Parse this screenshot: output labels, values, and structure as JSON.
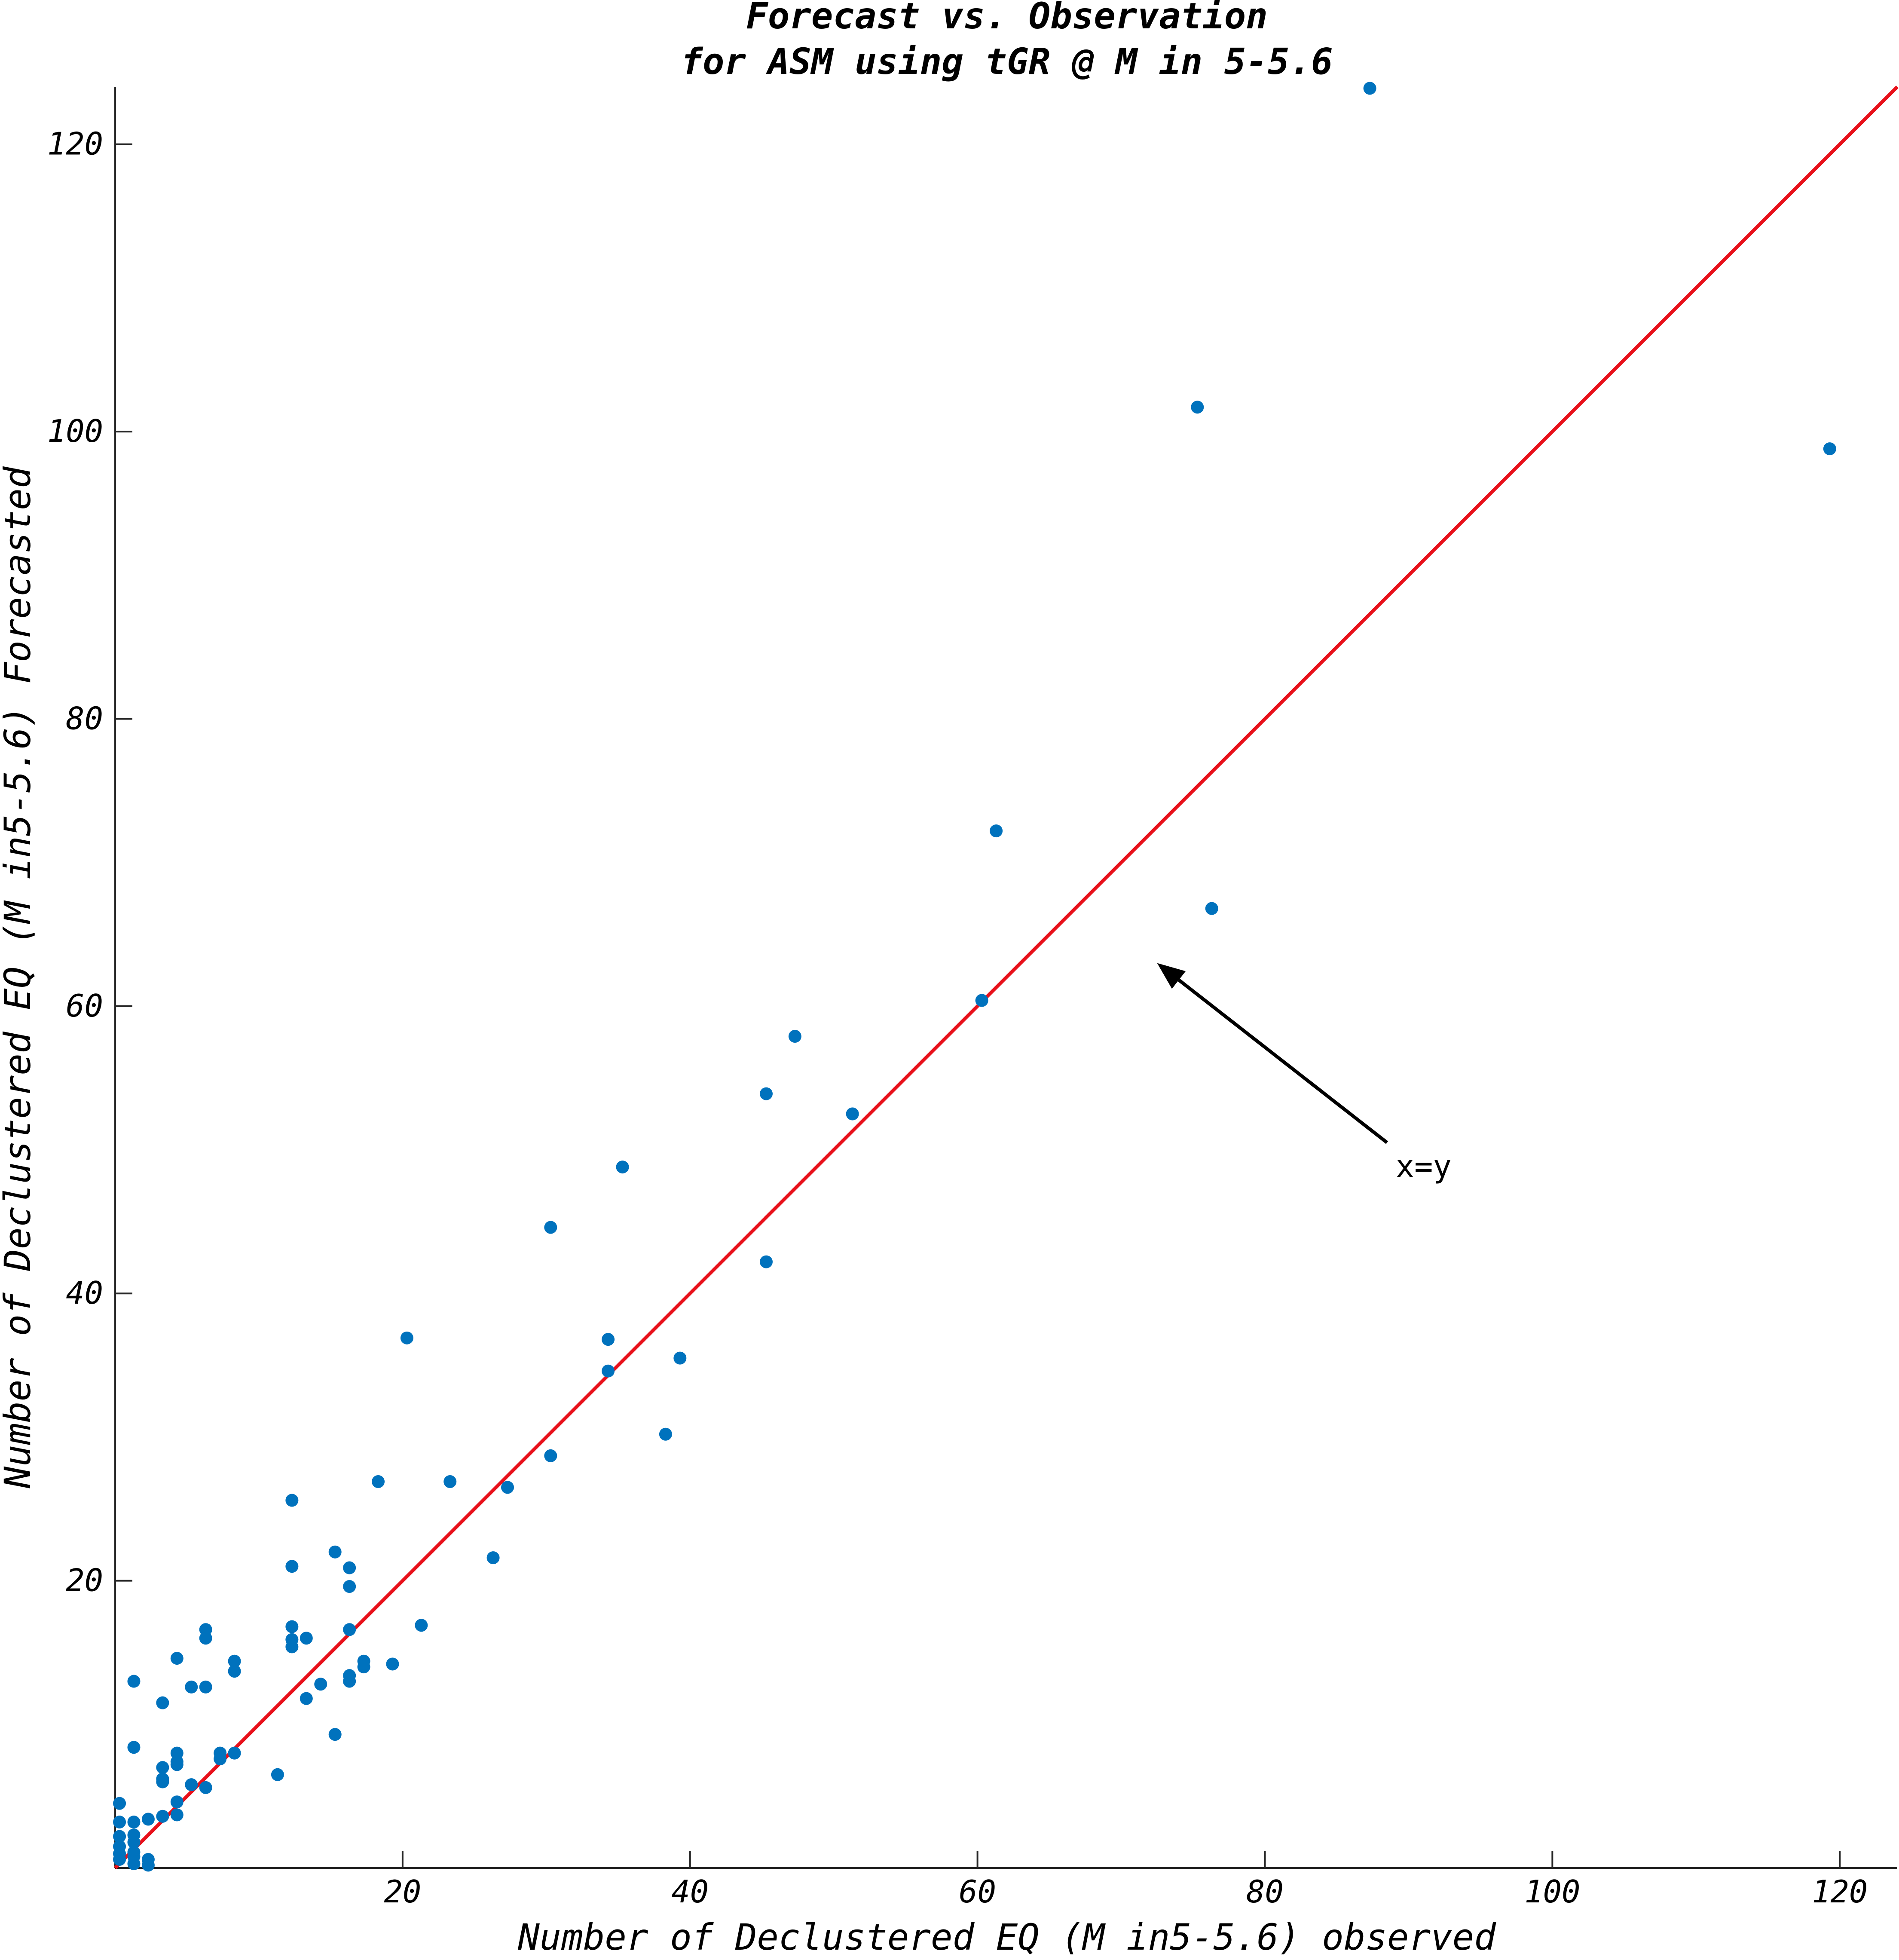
{
  "chart_data": {
    "type": "scatter",
    "title": [
      "Forecast vs. Observation",
      "for ASM using tGR @ M in 5-5.6"
    ],
    "xlabel": "Number of Declustered EQ  (M in5-5.6) observed",
    "ylabel": "Number of Declustered EQ  (M in5-5.6) Forecasted",
    "xlim": [
      0,
      124
    ],
    "ylim": [
      0,
      124
    ],
    "x_ticks": [
      20,
      40,
      60,
      80,
      100,
      120
    ],
    "y_ticks": [
      20,
      40,
      60,
      80,
      100,
      120
    ],
    "grid": false,
    "point_color": "#0072BD",
    "line_color": "#E8101A",
    "series": [
      {
        "type": "scatter",
        "points": [
          [
            0.3,
            4.5
          ],
          [
            0.3,
            3.2
          ],
          [
            0.3,
            2.2
          ],
          [
            0.3,
            1.5
          ],
          [
            0.3,
            1.0
          ],
          [
            0.3,
            0.6
          ],
          [
            1.3,
            13.0
          ],
          [
            1.3,
            8.4
          ],
          [
            1.3,
            3.2
          ],
          [
            1.3,
            2.3
          ],
          [
            1.3,
            1.8
          ],
          [
            1.3,
            1.1
          ],
          [
            1.3,
            0.8
          ],
          [
            1.3,
            0.3
          ],
          [
            2.3,
            3.4
          ],
          [
            2.3,
            0.6
          ],
          [
            2.3,
            0.2
          ],
          [
            3.3,
            11.5
          ],
          [
            3.3,
            7.0
          ],
          [
            3.3,
            6.2
          ],
          [
            3.3,
            6.0
          ],
          [
            3.3,
            3.6
          ],
          [
            4.3,
            14.6
          ],
          [
            4.3,
            8.0
          ],
          [
            4.3,
            7.4
          ],
          [
            4.3,
            7.2
          ],
          [
            4.3,
            4.6
          ],
          [
            4.3,
            3.7
          ],
          [
            5.3,
            12.6
          ],
          [
            5.3,
            5.8
          ],
          [
            6.3,
            16.6
          ],
          [
            6.3,
            16.0
          ],
          [
            6.3,
            12.6
          ],
          [
            6.3,
            5.6
          ],
          [
            7.3,
            8.0
          ],
          [
            7.3,
            7.6
          ],
          [
            8.3,
            14.4
          ],
          [
            8.3,
            13.7
          ],
          [
            8.3,
            8.0
          ],
          [
            11.3,
            6.5
          ],
          [
            12.3,
            25.6
          ],
          [
            12.3,
            21.0
          ],
          [
            12.3,
            16.8
          ],
          [
            12.3,
            15.9
          ],
          [
            12.3,
            15.4
          ],
          [
            13.3,
            16.0
          ],
          [
            13.3,
            11.8
          ],
          [
            14.3,
            12.8
          ],
          [
            15.3,
            22.0
          ],
          [
            15.3,
            9.3
          ],
          [
            16.3,
            20.9
          ],
          [
            16.3,
            19.6
          ],
          [
            16.3,
            16.6
          ],
          [
            16.3,
            13.4
          ],
          [
            16.3,
            13.0
          ],
          [
            17.3,
            14.4
          ],
          [
            17.3,
            14.0
          ],
          [
            18.3,
            26.9
          ],
          [
            19.3,
            14.2
          ],
          [
            20.3,
            36.9
          ],
          [
            21.3,
            16.9
          ],
          [
            23.3,
            26.9
          ],
          [
            26.3,
            21.6
          ],
          [
            27.3,
            26.5
          ],
          [
            30.3,
            44.6
          ],
          [
            30.3,
            28.7
          ],
          [
            34.3,
            36.8
          ],
          [
            34.3,
            34.6
          ],
          [
            35.3,
            48.8
          ],
          [
            38.3,
            30.2
          ],
          [
            39.3,
            35.5
          ],
          [
            45.3,
            53.9
          ],
          [
            45.3,
            42.2
          ],
          [
            47.3,
            57.9
          ],
          [
            51.3,
            52.5
          ],
          [
            60.3,
            60.4
          ],
          [
            61.3,
            72.2
          ],
          [
            75.3,
            101.7
          ],
          [
            76.3,
            66.8
          ],
          [
            87.3,
            123.9
          ],
          [
            119.3,
            98.8
          ]
        ]
      },
      {
        "type": "line",
        "points": [
          [
            0,
            0
          ],
          [
            124,
            124
          ]
        ]
      }
    ],
    "annotations": [
      {
        "type": "arrow",
        "text": "x=y",
        "from": [
          88.5,
          50.5
        ],
        "to": [
          72.5,
          63.0
        ]
      }
    ]
  }
}
